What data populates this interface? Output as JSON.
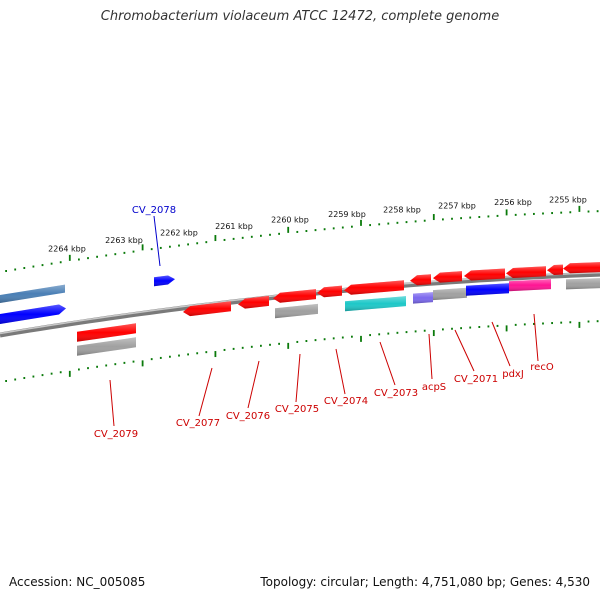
{
  "title": "Chromobacterium violaceum ATCC 12472, complete genome",
  "footer": {
    "accession": "Accession: NC_005085",
    "summary": "Topology: circular; Length: 4,751,080 bp; Genes: 4,530"
  },
  "colors": {
    "cds": "#ff0000",
    "rna": "#0000ff",
    "blue_light": "#4a7fb5",
    "teal": "#1ec8c8",
    "purple": "#7b68ee",
    "magenta": "#ff1493",
    "gray": "#a0a0a0",
    "tick": "#0a7a0a",
    "label_cds": "#cc0000",
    "label_rna": "#0000cc"
  },
  "ruler": {
    "outer_labels": [
      "2264 kbp",
      "2263 kbp",
      "2262 kbp",
      "2261 kbp",
      "2260 kbp",
      "2259 kbp",
      "2258 kbp",
      "2257 kbp",
      "2256 kbp",
      "2255 kbp"
    ]
  },
  "gene_labels": [
    {
      "text": "CV_2078",
      "color": "rna"
    },
    {
      "text": "CV_2079",
      "color": "cds"
    },
    {
      "text": "CV_2077",
      "color": "cds"
    },
    {
      "text": "CV_2076",
      "color": "cds"
    },
    {
      "text": "CV_2075",
      "color": "cds"
    },
    {
      "text": "CV_2074",
      "color": "cds"
    },
    {
      "text": "CV_2073",
      "color": "cds"
    },
    {
      "text": "acpS",
      "color": "cds"
    },
    {
      "text": "CV_2071",
      "color": "cds"
    },
    {
      "text": "pdxJ",
      "color": "cds"
    },
    {
      "text": "recO",
      "color": "cds"
    }
  ]
}
